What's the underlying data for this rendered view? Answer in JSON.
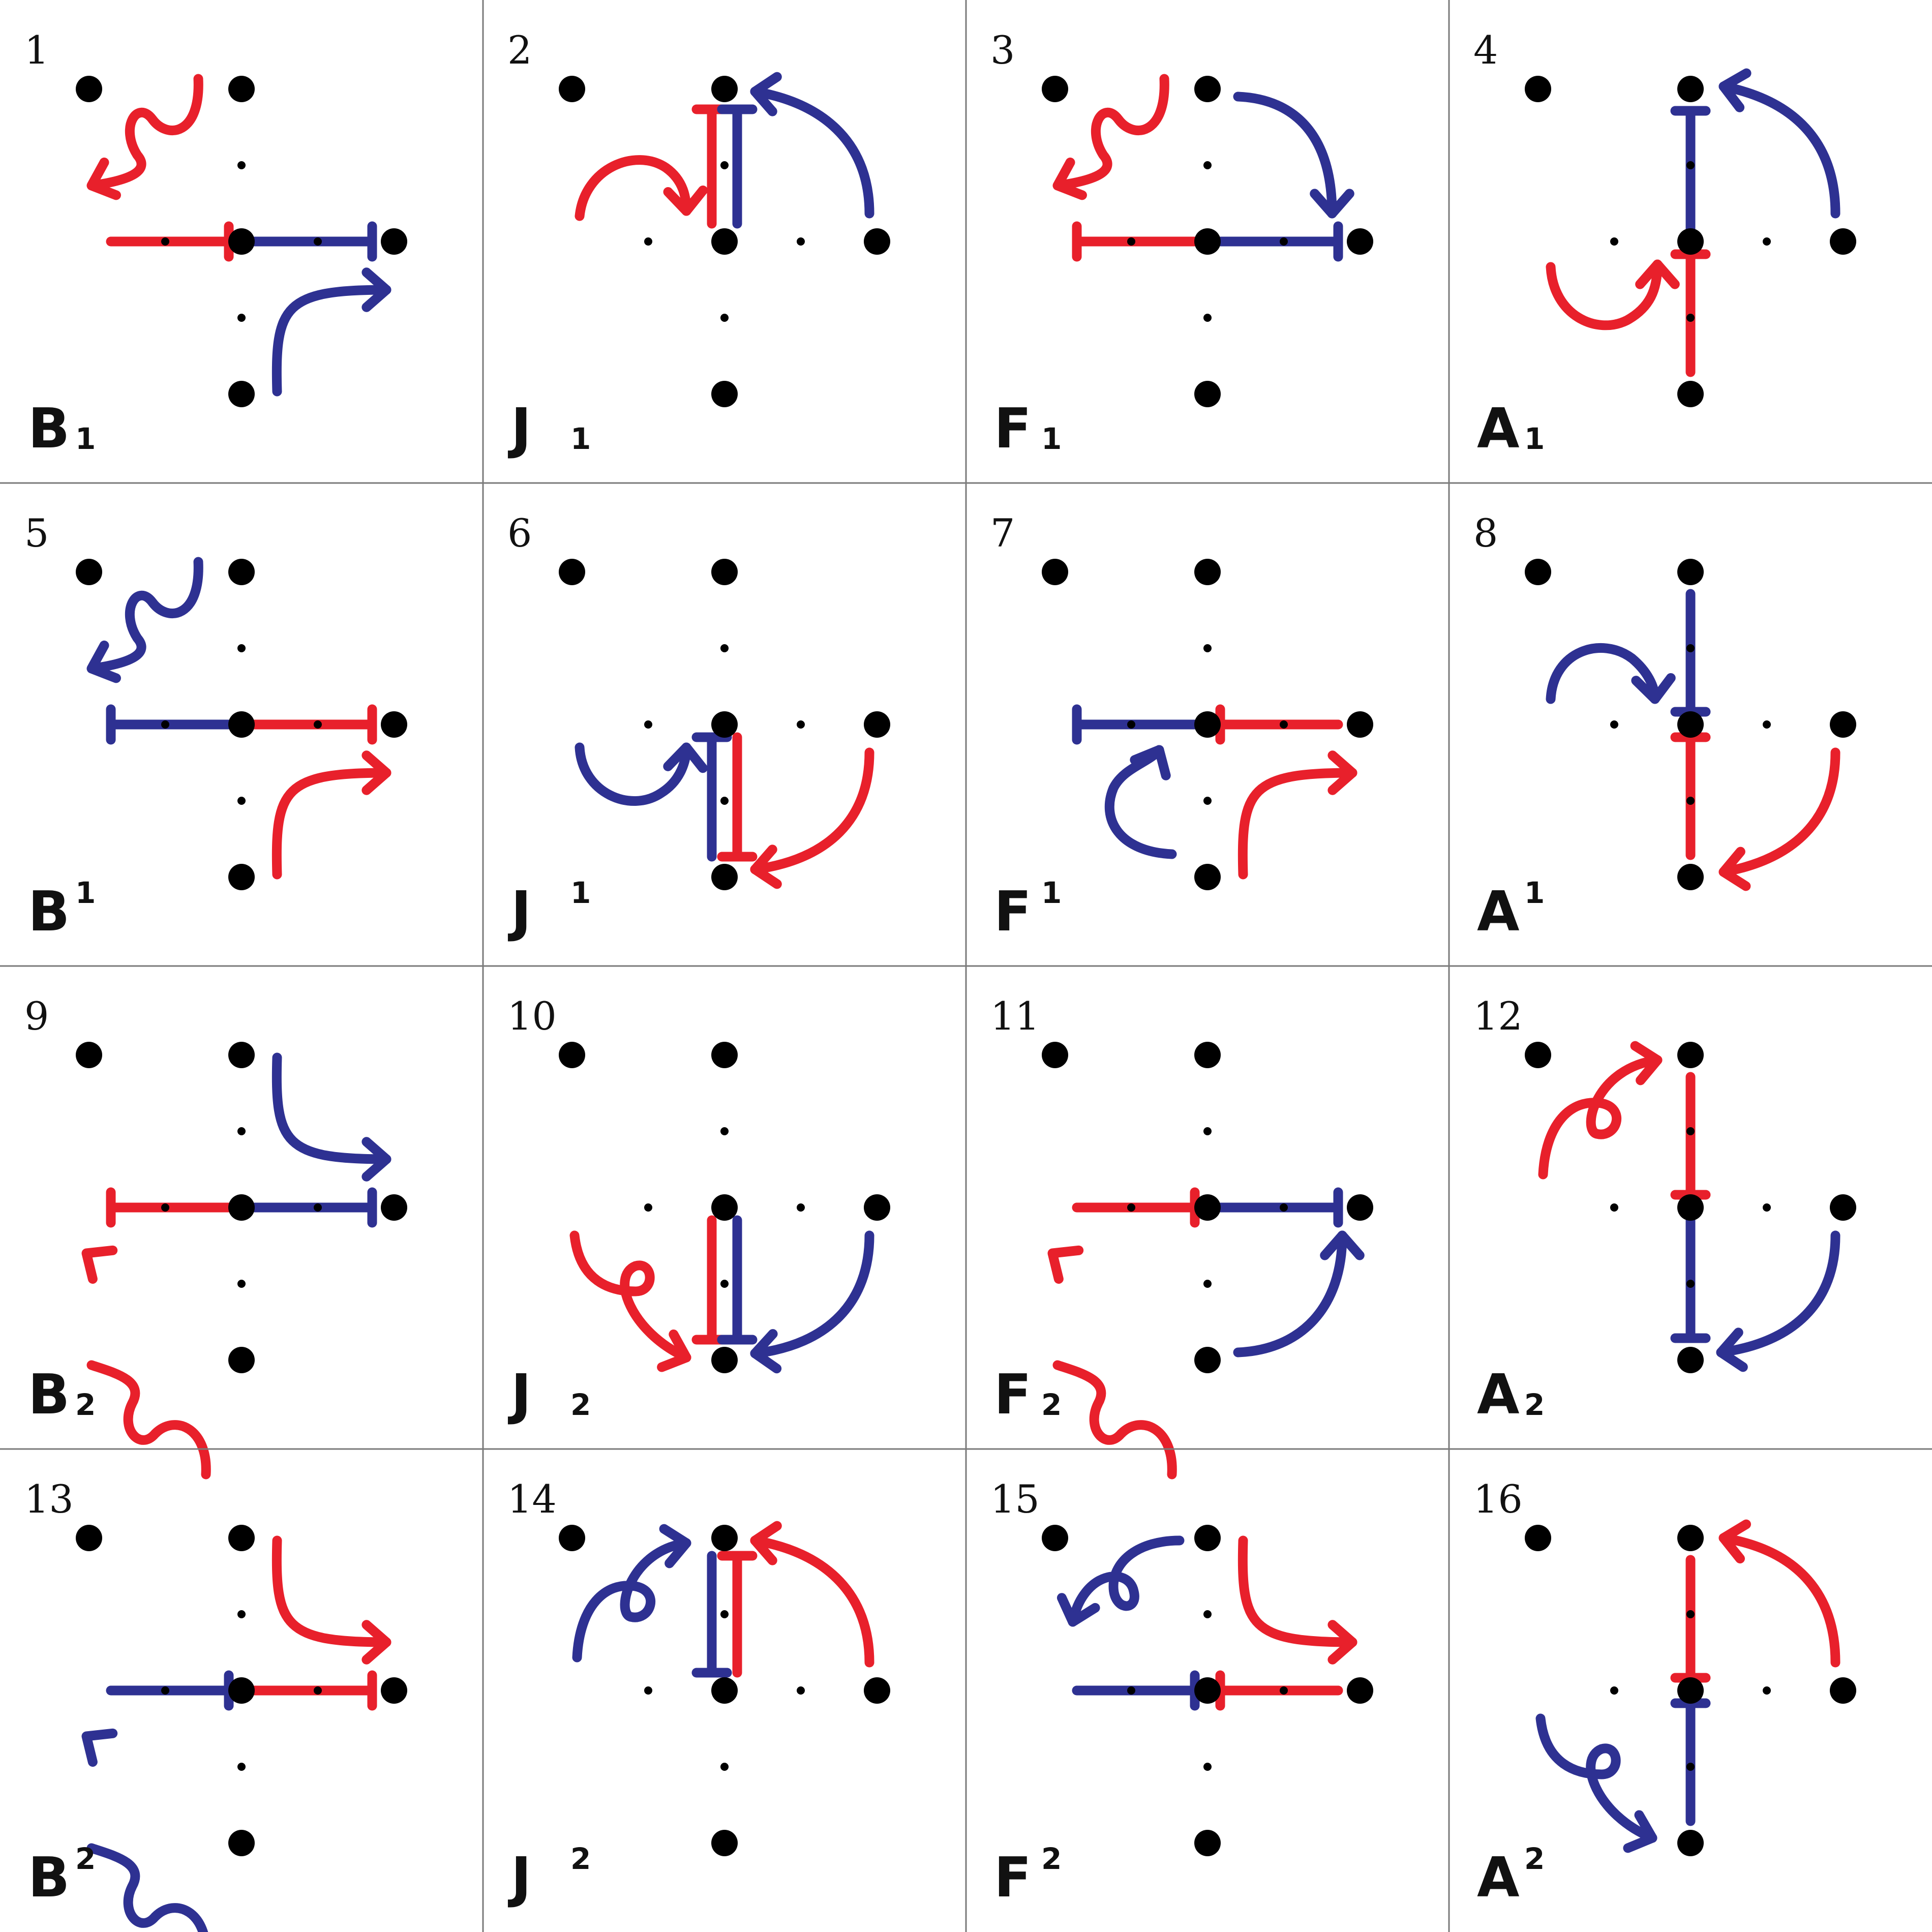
{
  "colors": {
    "red": "#e8202b",
    "blue": "#2e3192",
    "dot": "#000000",
    "grid": "#7a7a7a"
  },
  "panels": [
    {
      "number": "1",
      "letter": "B",
      "subscript": "1",
      "superscript": "",
      "glyph": "glyph-1"
    },
    {
      "number": "2",
      "letter": "J",
      "subscript": "1",
      "superscript": "",
      "glyph": "glyph-2"
    },
    {
      "number": "3",
      "letter": "F",
      "subscript": "1",
      "superscript": "",
      "glyph": "glyph-3"
    },
    {
      "number": "4",
      "letter": "A",
      "subscript": "1",
      "superscript": "",
      "glyph": "glyph-4"
    },
    {
      "number": "5",
      "letter": "B",
      "subscript": "",
      "superscript": "1",
      "glyph": "glyph-5"
    },
    {
      "number": "6",
      "letter": "J",
      "subscript": "",
      "superscript": "1",
      "glyph": "glyph-6"
    },
    {
      "number": "7",
      "letter": "F",
      "subscript": "",
      "superscript": "1",
      "glyph": "glyph-7"
    },
    {
      "number": "8",
      "letter": "A",
      "subscript": "",
      "superscript": "1",
      "glyph": "glyph-8"
    },
    {
      "number": "9",
      "letter": "B",
      "subscript": "2",
      "superscript": "",
      "glyph": "glyph-9"
    },
    {
      "number": "10",
      "letter": "J",
      "subscript": "2",
      "superscript": "",
      "glyph": "glyph-10"
    },
    {
      "number": "11",
      "letter": "F",
      "subscript": "2",
      "superscript": "",
      "glyph": "glyph-11"
    },
    {
      "number": "12",
      "letter": "A",
      "subscript": "2",
      "superscript": "",
      "glyph": "glyph-12"
    },
    {
      "number": "13",
      "letter": "B",
      "subscript": "",
      "superscript": "2",
      "glyph": "glyph-13"
    },
    {
      "number": "14",
      "letter": "J",
      "subscript": "",
      "superscript": "2",
      "glyph": "glyph-14"
    },
    {
      "number": "15",
      "letter": "F",
      "subscript": "",
      "superscript": "2",
      "glyph": "glyph-15"
    },
    {
      "number": "16",
      "letter": "A",
      "subscript": "",
      "superscript": "2",
      "glyph": "glyph-16"
    }
  ]
}
